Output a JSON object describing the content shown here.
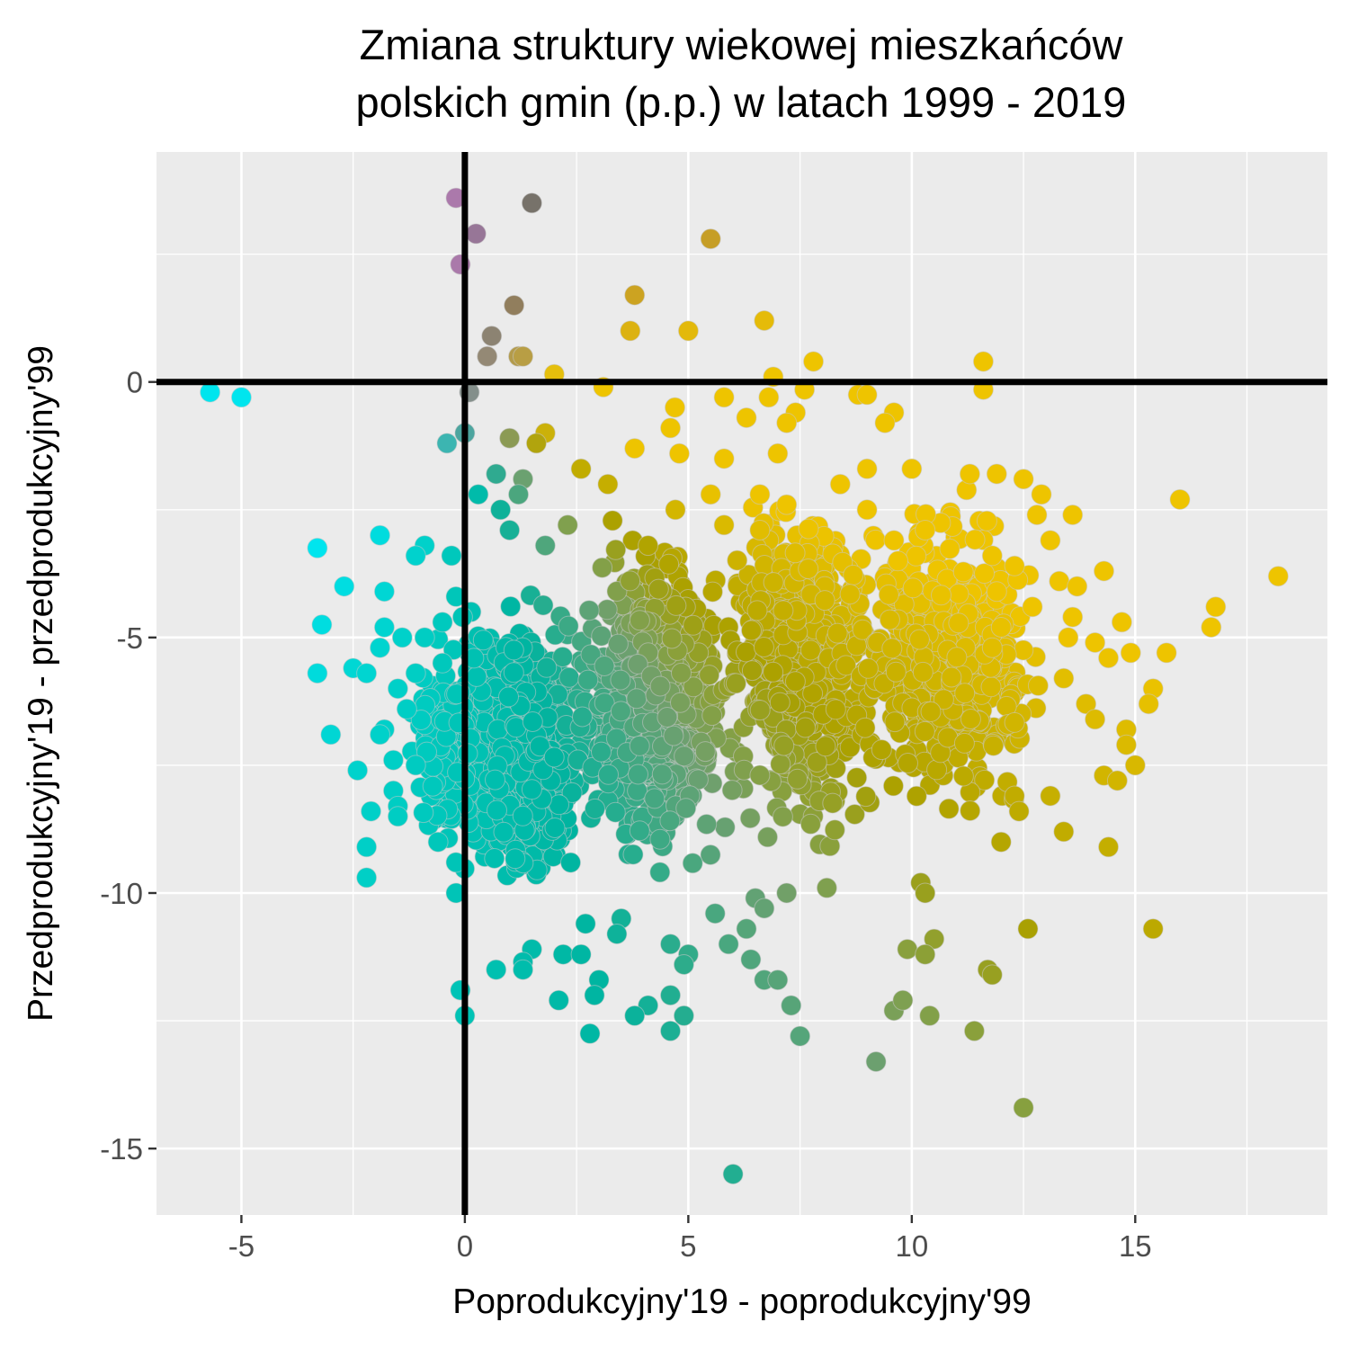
{
  "chart_data": {
    "type": "scatter",
    "title_lines": [
      "Zmiana struktury wiekowej mieszkańców",
      "polskich gmin (p.p.) w latach 1999 - 2019"
    ],
    "xlabel": "Poprodukcyjny'19 - poprodukcyjny'99",
    "ylabel": "Przedprodukcyjny'19 - przedprodukcyjny'99",
    "xlim": [
      -6.9,
      19.3
    ],
    "ylim": [
      -16.3,
      4.5
    ],
    "x_ticks": [
      -5,
      0,
      5,
      10,
      15
    ],
    "x_tick_labels": [
      "-5",
      "0",
      "5",
      "10",
      "15"
    ],
    "y_ticks": [
      -15,
      -10,
      -5,
      0
    ],
    "y_tick_labels": [
      "-15",
      "-10",
      "-5",
      "0"
    ],
    "reference_lines": {
      "x": 0,
      "y": 0
    },
    "grid": true,
    "color_scale": "colour encodes the point's direction from the origin: cyan (left / down), teal-green (down), olive to gold (right), mauve (up)",
    "colors": {
      "panel_background": "#EBEBEB",
      "gridline": "#FFFFFF",
      "reference_line": "#000000",
      "cyan": "#00E5EE",
      "teal": "#00B4A0",
      "olive": "#AAA000",
      "gold": "#EEC400",
      "mauve": "#B07AB0",
      "grey": "#707070"
    },
    "points_listed": "outlying points read off the plot; the dense central cloud is summarised by the cluster list below",
    "points": [
      {
        "x": -5.7,
        "y": -0.2
      },
      {
        "x": -5.0,
        "y": -0.3
      },
      {
        "x": -0.2,
        "y": 3.6
      },
      {
        "x": 1.5,
        "y": 3.5
      },
      {
        "x": 0.25,
        "y": 2.9
      },
      {
        "x": 5.5,
        "y": 2.8
      },
      {
        "x": -0.1,
        "y": 2.3
      },
      {
        "x": 3.8,
        "y": 1.7
      },
      {
        "x": 1.1,
        "y": 1.5
      },
      {
        "x": 6.7,
        "y": 1.2
      },
      {
        "x": 0.6,
        "y": 0.9
      },
      {
        "x": 3.7,
        "y": 1.0
      },
      {
        "x": 5.0,
        "y": 1.0
      },
      {
        "x": 0.5,
        "y": 0.5
      },
      {
        "x": 1.2,
        "y": 0.5
      },
      {
        "x": 1.3,
        "y": 0.5
      },
      {
        "x": 2.0,
        "y": 0.15
      },
      {
        "x": 7.8,
        "y": 0.4
      },
      {
        "x": 11.6,
        "y": 0.4
      },
      {
        "x": 6.9,
        "y": 0.1
      },
      {
        "x": 0.1,
        "y": -0.2
      },
      {
        "x": 3.1,
        "y": -0.1
      },
      {
        "x": 7.6,
        "y": -0.15
      },
      {
        "x": 11.6,
        "y": -0.15
      },
      {
        "x": 5.8,
        "y": -0.3
      },
      {
        "x": 6.8,
        "y": -0.3
      },
      {
        "x": 8.8,
        "y": -0.25
      },
      {
        "x": 9.0,
        "y": -0.25
      },
      {
        "x": 4.7,
        "y": -0.5
      },
      {
        "x": 6.3,
        "y": -0.7
      },
      {
        "x": 7.4,
        "y": -0.6
      },
      {
        "x": 9.6,
        "y": -0.6
      },
      {
        "x": 7.2,
        "y": -0.8
      },
      {
        "x": 4.6,
        "y": -0.9
      },
      {
        "x": 9.4,
        "y": -0.8
      },
      {
        "x": -0.4,
        "y": -1.2
      },
      {
        "x": 0.0,
        "y": -1.0
      },
      {
        "x": 1.0,
        "y": -1.1
      },
      {
        "x": 1.8,
        "y": -1.0
      },
      {
        "x": 1.6,
        "y": -1.2
      },
      {
        "x": 3.8,
        "y": -1.3
      },
      {
        "x": 4.8,
        "y": -1.4
      },
      {
        "x": 5.8,
        "y": -1.5
      },
      {
        "x": 7.0,
        "y": -1.4
      },
      {
        "x": 0.7,
        "y": -1.8
      },
      {
        "x": 1.3,
        "y": -1.9
      },
      {
        "x": 2.6,
        "y": -1.7
      },
      {
        "x": 9.0,
        "y": -1.7
      },
      {
        "x": 10.0,
        "y": -1.7
      },
      {
        "x": 11.3,
        "y": -1.8
      },
      {
        "x": 11.9,
        "y": -1.8
      },
      {
        "x": 0.3,
        "y": -2.2
      },
      {
        "x": 1.2,
        "y": -2.2
      },
      {
        "x": 3.2,
        "y": -2.0
      },
      {
        "x": 5.5,
        "y": -2.2
      },
      {
        "x": 6.6,
        "y": -2.2
      },
      {
        "x": 8.4,
        "y": -2.0
      },
      {
        "x": 12.5,
        "y": -1.9
      },
      {
        "x": 12.9,
        "y": -2.2
      },
      {
        "x": 16.0,
        "y": -2.3
      },
      {
        "x": 0.8,
        "y": -2.5
      },
      {
        "x": 7.2,
        "y": -2.4
      },
      {
        "x": 9.0,
        "y": -2.5
      },
      {
        "x": 12.8,
        "y": -2.6
      },
      {
        "x": 13.6,
        "y": -2.6
      },
      {
        "x": 1.0,
        "y": -2.9
      },
      {
        "x": 2.3,
        "y": -2.8
      },
      {
        "x": 5.8,
        "y": -2.8
      },
      {
        "x": 6.6,
        "y": -2.9
      },
      {
        "x": 10.3,
        "y": -2.9
      },
      {
        "x": -1.9,
        "y": -3.0
      },
      {
        "x": -0.9,
        "y": -3.2
      },
      {
        "x": 1.8,
        "y": -3.2
      },
      {
        "x": 4.1,
        "y": -3.2
      },
      {
        "x": 9.6,
        "y": -3.1
      },
      {
        "x": 13.1,
        "y": -3.1
      },
      {
        "x": -3.3,
        "y": -3.25
      },
      {
        "x": -1.1,
        "y": -3.4
      },
      {
        "x": -0.3,
        "y": -3.4
      },
      {
        "x": 11.8,
        "y": -3.4
      },
      {
        "x": 12.3,
        "y": -3.6
      },
      {
        "x": 14.3,
        "y": -3.7
      },
      {
        "x": 13.3,
        "y": -3.9
      },
      {
        "x": 18.2,
        "y": -3.8
      },
      {
        "x": -2.7,
        "y": -4.0
      },
      {
        "x": -1.8,
        "y": -4.1
      },
      {
        "x": -0.2,
        "y": -4.2
      },
      {
        "x": 13.7,
        "y": -4.0
      },
      {
        "x": 11.9,
        "y": -4.1
      },
      {
        "x": 12.7,
        "y": -4.4
      },
      {
        "x": 16.8,
        "y": -4.4
      },
      {
        "x": 13.6,
        "y": -4.6
      },
      {
        "x": -3.2,
        "y": -4.75
      },
      {
        "x": -1.8,
        "y": -4.8
      },
      {
        "x": -0.5,
        "y": -4.7
      },
      {
        "x": -0.05,
        "y": -4.6
      },
      {
        "x": 12.0,
        "y": -4.8
      },
      {
        "x": 14.7,
        "y": -4.7
      },
      {
        "x": 16.7,
        "y": -4.8
      },
      {
        "x": -1.4,
        "y": -5.0
      },
      {
        "x": -0.9,
        "y": -5.0
      },
      {
        "x": 13.5,
        "y": -5.0
      },
      {
        "x": 14.1,
        "y": -5.1
      },
      {
        "x": -1.9,
        "y": -5.2
      },
      {
        "x": 11.8,
        "y": -5.2
      },
      {
        "x": 14.9,
        "y": -5.3
      },
      {
        "x": 15.7,
        "y": -5.3
      },
      {
        "x": 14.4,
        "y": -5.4
      },
      {
        "x": -3.3,
        "y": -5.7
      },
      {
        "x": -2.5,
        "y": -5.6
      },
      {
        "x": -2.2,
        "y": -5.7
      },
      {
        "x": -1.1,
        "y": -5.7
      },
      {
        "x": -0.5,
        "y": -5.5
      },
      {
        "x": 13.4,
        "y": -5.8
      },
      {
        "x": -1.5,
        "y": -6.0
      },
      {
        "x": 15.4,
        "y": -6.0
      },
      {
        "x": 15.3,
        "y": -6.3
      },
      {
        "x": 13.9,
        "y": -6.3
      },
      {
        "x": -1.3,
        "y": -6.4
      },
      {
        "x": 14.1,
        "y": -6.6
      },
      {
        "x": -3.0,
        "y": -6.9
      },
      {
        "x": -1.8,
        "y": -6.8
      },
      {
        "x": -1.9,
        "y": -6.9
      },
      {
        "x": 14.8,
        "y": -6.8
      },
      {
        "x": 14.8,
        "y": -7.1
      },
      {
        "x": -1.6,
        "y": -7.4
      },
      {
        "x": -2.4,
        "y": -7.6
      },
      {
        "x": -1.1,
        "y": -7.5
      },
      {
        "x": 15.0,
        "y": -7.5
      },
      {
        "x": 14.3,
        "y": -7.7
      },
      {
        "x": 14.6,
        "y": -7.8
      },
      {
        "x": -1.6,
        "y": -8.0
      },
      {
        "x": -1.5,
        "y": -8.3
      },
      {
        "x": -2.1,
        "y": -8.4
      },
      {
        "x": -1.5,
        "y": -8.5
      },
      {
        "x": 12.3,
        "y": -8.1
      },
      {
        "x": 13.1,
        "y": -8.1
      },
      {
        "x": 12.4,
        "y": -8.4
      },
      {
        "x": -0.6,
        "y": -9.0
      },
      {
        "x": -2.2,
        "y": -9.1
      },
      {
        "x": 12.0,
        "y": -9.0
      },
      {
        "x": 13.4,
        "y": -8.8
      },
      {
        "x": 14.4,
        "y": -9.1
      },
      {
        "x": -0.2,
        "y": -9.4
      },
      {
        "x": -2.2,
        "y": -9.7
      },
      {
        "x": 10.2,
        "y": -9.8
      },
      {
        "x": -0.2,
        "y": -10.0
      },
      {
        "x": 8.1,
        "y": -9.9
      },
      {
        "x": 10.3,
        "y": -10.0
      },
      {
        "x": 6.5,
        "y": -10.1
      },
      {
        "x": 7.2,
        "y": -10.0
      },
      {
        "x": 6.7,
        "y": -10.3
      },
      {
        "x": 3.5,
        "y": -10.5
      },
      {
        "x": 5.6,
        "y": -10.4
      },
      {
        "x": 2.7,
        "y": -10.6
      },
      {
        "x": 12.6,
        "y": -10.7
      },
      {
        "x": 15.4,
        "y": -10.7
      },
      {
        "x": 3.4,
        "y": -10.8
      },
      {
        "x": 6.3,
        "y": -10.7
      },
      {
        "x": 10.5,
        "y": -10.9
      },
      {
        "x": 4.6,
        "y": -11.0
      },
      {
        "x": 5.9,
        "y": -11.0
      },
      {
        "x": 1.5,
        "y": -11.1
      },
      {
        "x": 9.9,
        "y": -11.1
      },
      {
        "x": 10.3,
        "y": -11.2
      },
      {
        "x": 2.2,
        "y": -11.2
      },
      {
        "x": 2.6,
        "y": -11.2
      },
      {
        "x": 5.0,
        "y": -11.2
      },
      {
        "x": 6.4,
        "y": -11.3
      },
      {
        "x": 1.3,
        "y": -11.35
      },
      {
        "x": 4.9,
        "y": -11.4
      },
      {
        "x": 0.7,
        "y": -11.5
      },
      {
        "x": 1.3,
        "y": -11.5
      },
      {
        "x": 11.7,
        "y": -11.5
      },
      {
        "x": 11.8,
        "y": -11.6
      },
      {
        "x": 6.7,
        "y": -11.7
      },
      {
        "x": 7.0,
        "y": -11.7
      },
      {
        "x": 3.0,
        "y": -11.7
      },
      {
        "x": -0.1,
        "y": -11.9
      },
      {
        "x": 2.9,
        "y": -12.0
      },
      {
        "x": 4.6,
        "y": -12.0
      },
      {
        "x": 2.1,
        "y": -12.1
      },
      {
        "x": 7.3,
        "y": -12.2
      },
      {
        "x": 4.1,
        "y": -12.2
      },
      {
        "x": 9.6,
        "y": -12.3
      },
      {
        "x": 3.8,
        "y": -12.4
      },
      {
        "x": 4.9,
        "y": -12.4
      },
      {
        "x": 10.4,
        "y": -12.4
      },
      {
        "x": 0.0,
        "y": -12.4
      },
      {
        "x": 11.4,
        "y": -12.7
      },
      {
        "x": 2.8,
        "y": -12.75
      },
      {
        "x": 4.6,
        "y": -12.7
      },
      {
        "x": 9.8,
        "y": -12.1
      },
      {
        "x": 7.5,
        "y": -12.8
      },
      {
        "x": 9.2,
        "y": -13.3
      },
      {
        "x": 12.5,
        "y": -14.2
      },
      {
        "x": 6.0,
        "y": -15.5
      }
    ],
    "dense_clusters": [
      {
        "x_range": [
          -0.5,
          3.0
        ],
        "y_range": [
          -10.5,
          -4.0
        ],
        "count": 800
      },
      {
        "x_range": [
          2.0,
          6.5
        ],
        "y_range": [
          -10.0,
          -2.5
        ],
        "count": 700
      },
      {
        "x_range": [
          5.5,
          9.5
        ],
        "y_range": [
          -9.5,
          -1.5
        ],
        "count": 600
      },
      {
        "x_range": [
          8.0,
          13.5
        ],
        "y_range": [
          -9.0,
          -2.0
        ],
        "count": 550
      },
      {
        "x_range": [
          -1.5,
          0.5
        ],
        "y_range": [
          -9.5,
          -4.5
        ],
        "count": 150
      }
    ]
  }
}
